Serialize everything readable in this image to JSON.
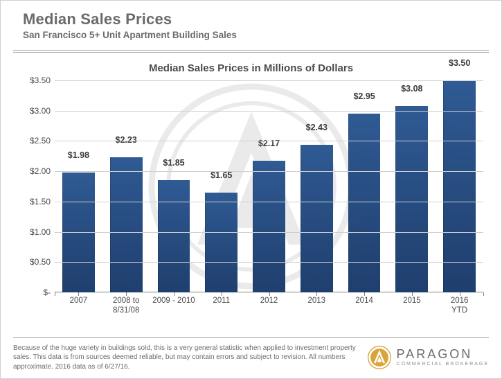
{
  "header": {
    "title": "Median Sales Prices",
    "subtitle": "San Francisco 5+ Unit Apartment Building Sales"
  },
  "chart": {
    "type": "bar",
    "title": "Median Sales Prices in Millions of Dollars",
    "categories": [
      "2007",
      "2008 to 8/31/08",
      "2009 - 2010",
      "2011",
      "2012",
      "2013",
      "2014",
      "2015",
      "2016 YTD"
    ],
    "values": [
      1.98,
      2.23,
      1.85,
      1.65,
      2.17,
      2.43,
      2.95,
      3.08,
      3.5
    ],
    "value_labels": [
      "$1.98",
      "$2.23",
      "$1.85",
      "$1.65",
      "$2.17",
      "$2.43",
      "$2.95",
      "$3.08",
      "$3.50"
    ],
    "bar_fill_top": "#2f5a93",
    "bar_fill_bottom": "#1f3f6e",
    "ylim": [
      0,
      3.75
    ],
    "ytick_step": 0.5,
    "yticks": [
      "$-",
      "$0.50",
      "$1.00",
      "$1.50",
      "$2.00",
      "$2.50",
      "$3.00",
      "$3.50"
    ],
    "grid_color": "#cfcfcf",
    "axis_color": "#808080",
    "value_label_fontsize": 12.5,
    "value_label_color": "#3a3a3a",
    "xlabel_fontsize": 11.5,
    "ylabel_fontsize": 12,
    "title_fontsize": 15,
    "title_color": "#4a4a4a",
    "background_color": "#ffffff",
    "bar_width": 0.68
  },
  "footer": {
    "text": "Because of the huge variety in buildings sold, this is a very general statistic when applied to investment property sales. This data is from sources deemed reliable, but may contain errors and subject to revision. All numbers approximate. 2016 data as of 6/27/16."
  },
  "brand": {
    "name": "PARAGON",
    "tagline": "COMMERCIAL BROKERAGE",
    "logo_circle_color": "#d9a43c",
    "logo_arrow_color": "#ffffff"
  },
  "colors": {
    "text_muted": "#6b6b6b",
    "divider": "#a8a8a8"
  }
}
